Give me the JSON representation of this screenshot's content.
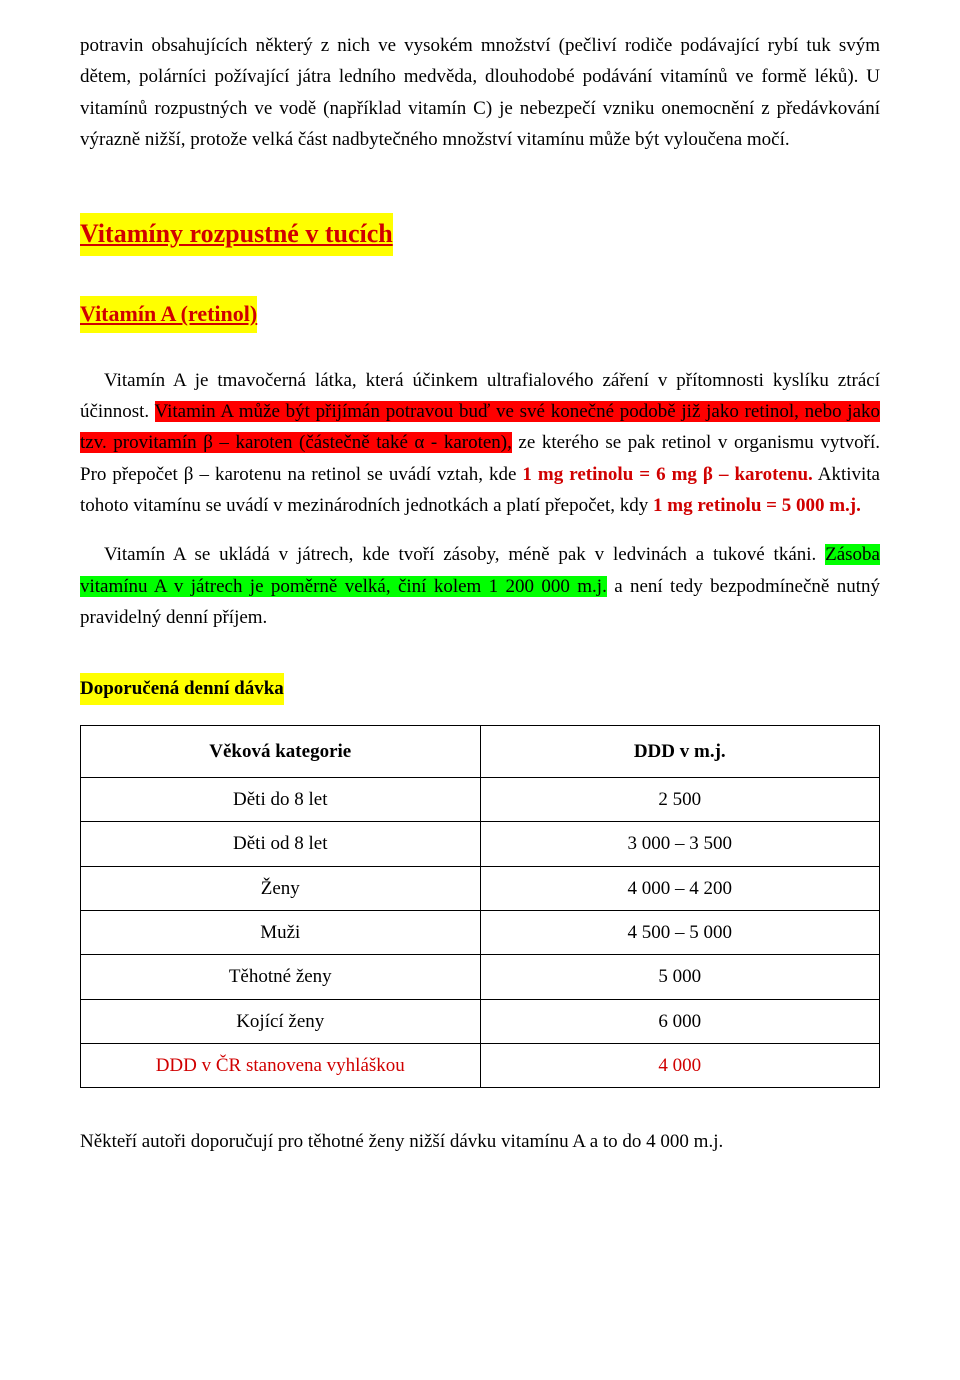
{
  "intro": {
    "para1": "potravin obsahujících některý z nich ve vysokém množství (pečliví rodiče podávající rybí tuk svým dětem, polárníci požívající játra ledního medvěda, dlouhodobé podávání vitamínů ve formě léků). U vitamínů rozpustných ve vodě (například vitamín C) je nebezpečí vzniku onemocnění z předávkování výrazně nižší, protože velká část nadbytečného množství vitamínu může být vyloučena močí."
  },
  "section_title": "Vitamíny rozpustné v tucích",
  "subsection_title": "Vitamín A (retinol)",
  "vitA": {
    "p1_lead": "Vitamín A je tmavočerná látka, která účinkem ultrafialového záření v přítomnosti kyslíku ztrácí účinnost. ",
    "p1_hl1": "Vitamin A může být přijímán potravou buď ve své konečné podobě již jako retinol, nebo jako tzv. provitamín β – karoten (částečně také  α - karoten),",
    "p1_mid": " ze kterého se pak retinol v organismu vytvoří. Pro přepočet β – karotenu na retinol se uvádí vztah, kde ",
    "p1_red1": "1 mg retinolu = 6 mg β – karotenu.",
    "p1_after": " Aktivita tohoto vitamínu se uvádí v mezinárodních jednotkách a platí přepočet, kdy ",
    "p1_red2": "1 mg retinolu = 5 000 m.j.",
    "p2_lead": "Vitamín A se ukládá v játrech, kde tvoří zásoby, méně pak v ledvinách a tukové tkáni. ",
    "p2_hl": "Zásoba vitamínu A v játrech je poměrně velká, činí kolem 1 200 000 m.j.",
    "p2_tail": " a není tedy bezpodmínečně nutný pravidelný denní příjem."
  },
  "ddd_label": "Doporučená denní dávka",
  "table": {
    "header_cat": "Věková kategorie",
    "header_val": "DDD v m.j.",
    "rows": [
      {
        "cat": "Děti do 8 let",
        "val": "2 500"
      },
      {
        "cat": "Děti od 8 let",
        "val": "3 000 – 3 500"
      },
      {
        "cat": "Ženy",
        "val": "4 000 – 4 200"
      },
      {
        "cat": "Muži",
        "val": "4 500 – 5 000"
      },
      {
        "cat": "Těhotné ženy",
        "val": "5 000"
      },
      {
        "cat": "Kojící ženy",
        "val": "6 000"
      }
    ],
    "ddd_row": {
      "cat": "DDD v ČR stanovena vyhláškou",
      "val": "4 000"
    }
  },
  "final": "Někteří autoři doporučují pro těhotné ženy nižší dávku vitamínu A a to do 4 000 m.j."
}
